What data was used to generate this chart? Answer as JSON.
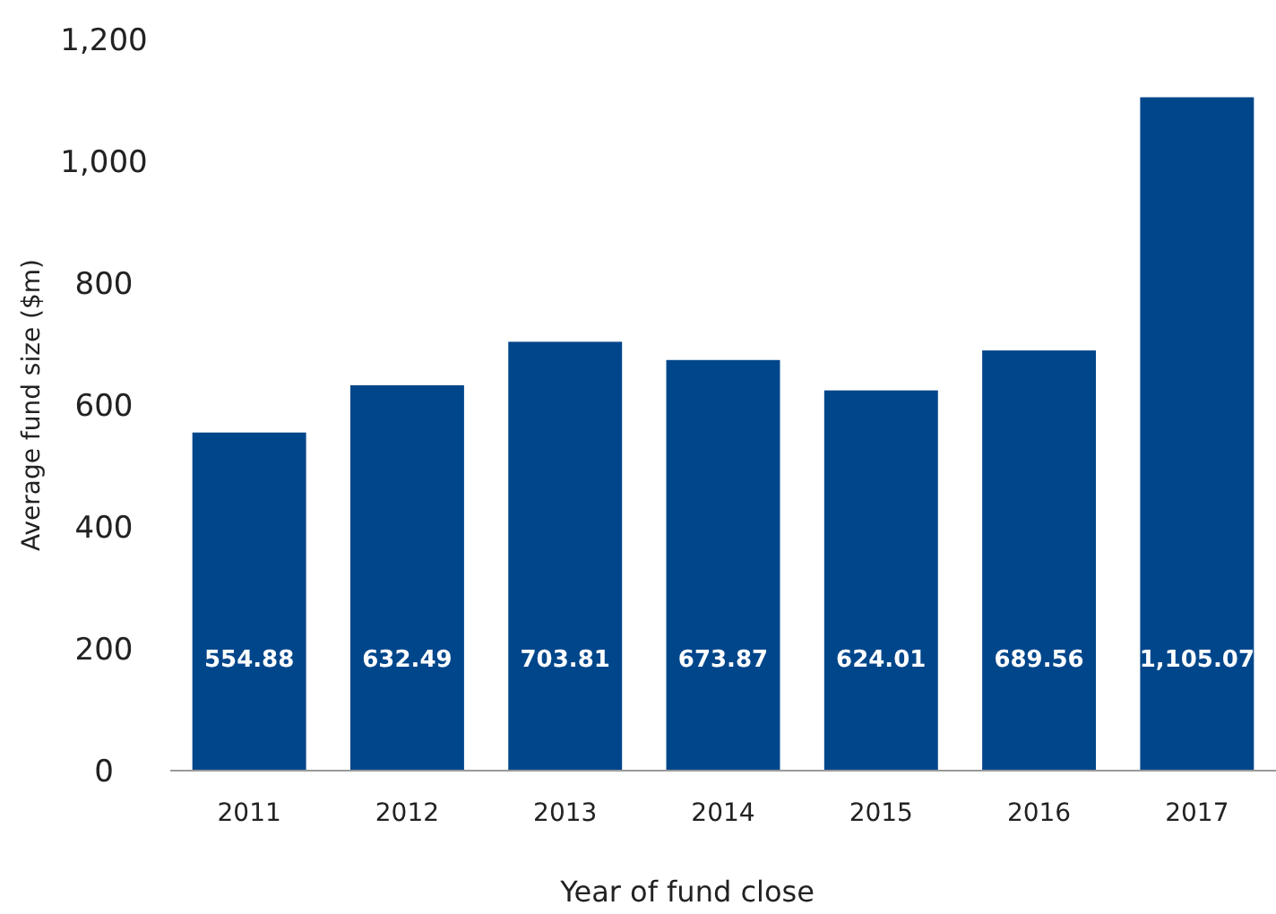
{
  "chart_data": {
    "type": "bar",
    "xlabel": "Year of fund close",
    "ylabel": "Average fund size ($m)",
    "categories": [
      "2011",
      "2012",
      "2013",
      "2014",
      "2015",
      "2016",
      "2017"
    ],
    "values": [
      554.88,
      632.49,
      703.81,
      673.87,
      624.01,
      689.56,
      1105.07
    ],
    "value_labels": [
      "554.88",
      "632.49",
      "703.81",
      "673.87",
      "624.01",
      "689.56",
      "1,105.07"
    ],
    "color": "#00468b",
    "ylim": [
      0,
      1200
    ],
    "yticks": [
      0,
      200,
      400,
      600,
      800,
      {
        "value": 1000,
        "label": "1,000"
      },
      {
        "value": 1200,
        "label": "1,200"
      }
    ],
    "grid": false
  }
}
